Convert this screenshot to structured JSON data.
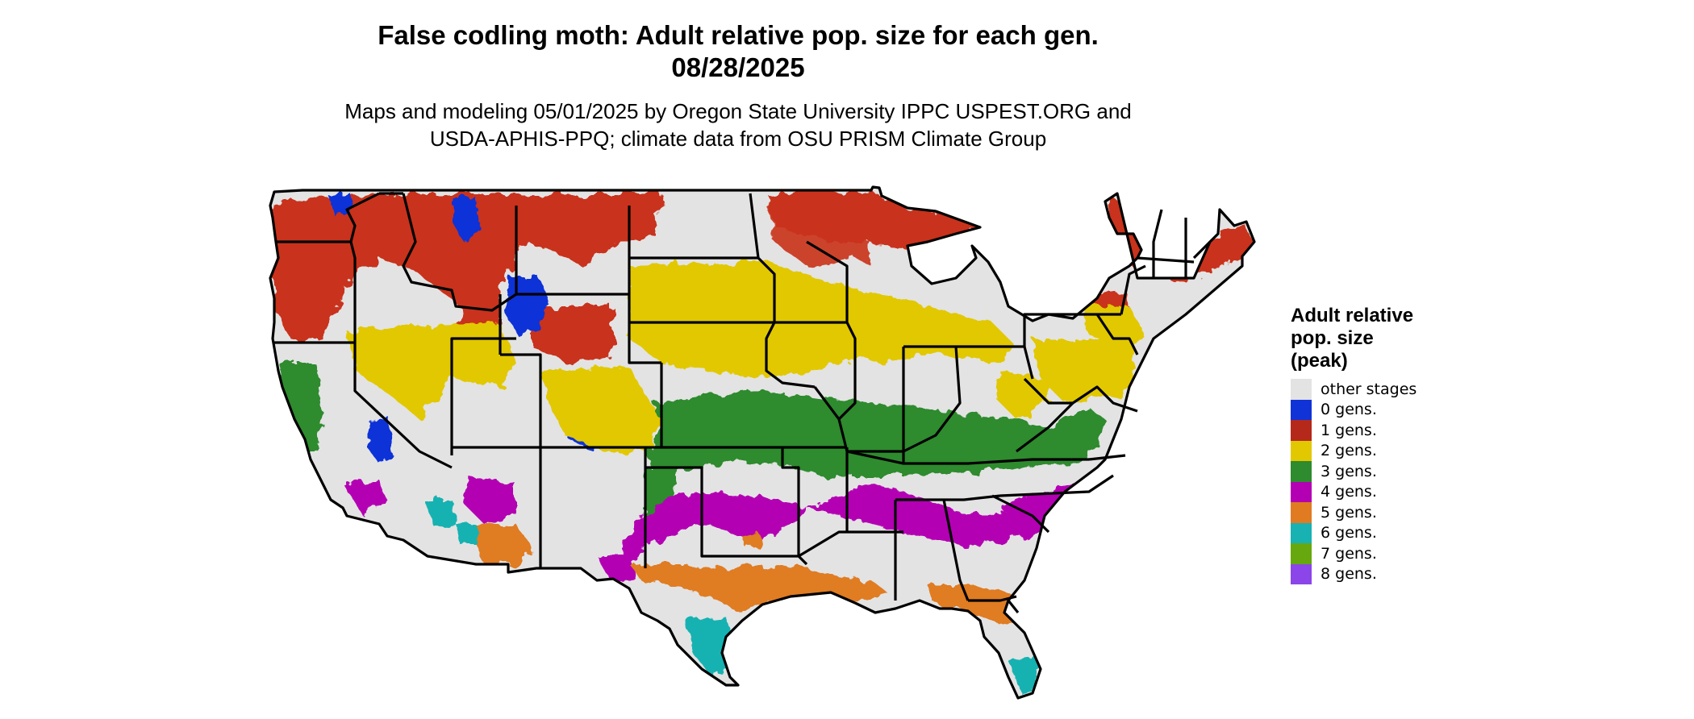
{
  "title": {
    "line1": "False codling moth: Adult relative pop. size for each gen.",
    "line2": "08/28/2025"
  },
  "subtitle": {
    "line1": "Maps and modeling 05/01/2025 by Oregon State University IPPC USPEST.ORG and",
    "line2": "USDA-APHIS-PPQ; climate data from OSU PRISM Climate Group"
  },
  "legend": {
    "title_lines": [
      "Adult relative",
      "pop. size",
      "(peak)"
    ],
    "items": [
      {
        "label": "other stages",
        "color": "#e3e3e3"
      },
      {
        "label": "0 gens.",
        "color": "#1033d8"
      },
      {
        "label": "1 gens.",
        "color": "#b5291b"
      },
      {
        "label": "2 gens.",
        "color": "#e2c800"
      },
      {
        "label": "3 gens.",
        "color": "#2e8b2e"
      },
      {
        "label": "4 gens.",
        "color": "#b300b3"
      },
      {
        "label": "5 gens.",
        "color": "#e07b22"
      },
      {
        "label": "6 gens.",
        "color": "#18b2b2"
      },
      {
        "label": "7 gens.",
        "color": "#66a80e"
      },
      {
        "label": "8 gens.",
        "color": "#8b45e8"
      }
    ]
  }
}
